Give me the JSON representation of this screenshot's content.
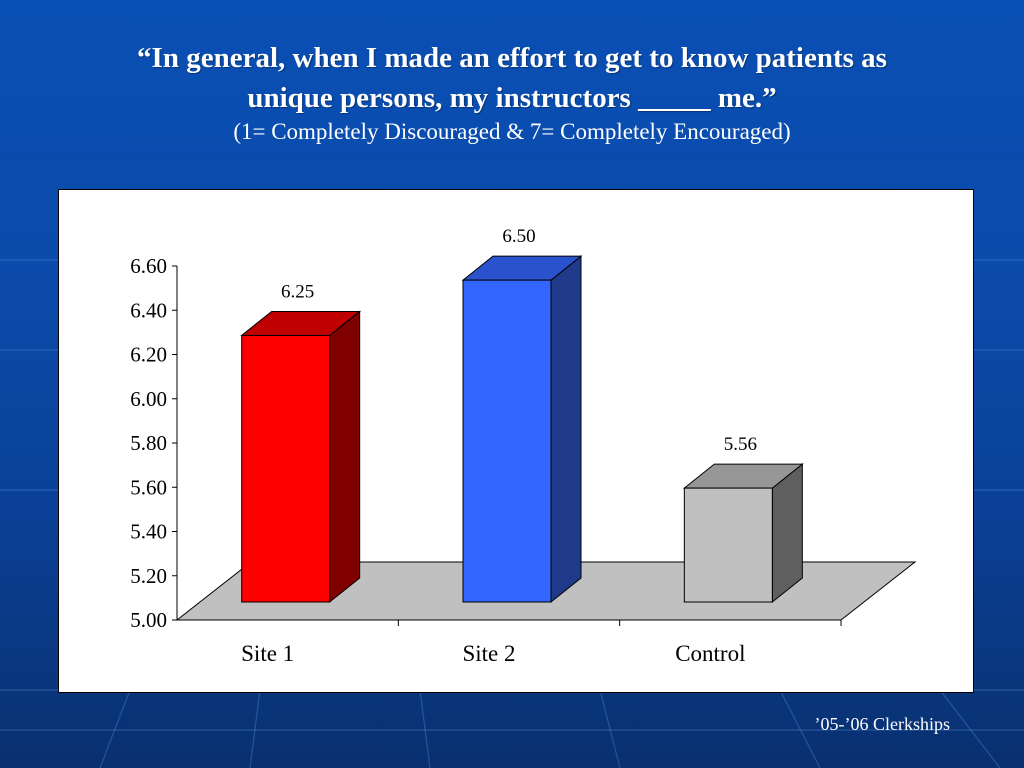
{
  "slide": {
    "title": "“In general, when I made an effort to get to know patients as\nunique persons, my instructors _____ me.”",
    "subtitle": "(1= Completely Discouraged & 7= Completely Encouraged)",
    "footer": "’05-’06 Clerkships"
  },
  "colors": {
    "background": "#0a4fb5",
    "site1": "#ff0000",
    "site2": "#3366ff",
    "control": "#c0c0c0",
    "floor": "#c0c0c0"
  },
  "chart_data": {
    "type": "bar",
    "categories": [
      "Site 1",
      "Site 2",
      "Control"
    ],
    "values": [
      6.25,
      6.5,
      5.56
    ],
    "value_labels": [
      "6.25",
      "6.50",
      "5.56"
    ],
    "ylim": [
      5.0,
      6.6
    ],
    "yticks": [
      "5.00",
      "5.20",
      "5.40",
      "5.60",
      "5.80",
      "6.00",
      "6.20",
      "6.40",
      "6.60"
    ],
    "grid": false,
    "legend": "none",
    "style": "3d"
  }
}
